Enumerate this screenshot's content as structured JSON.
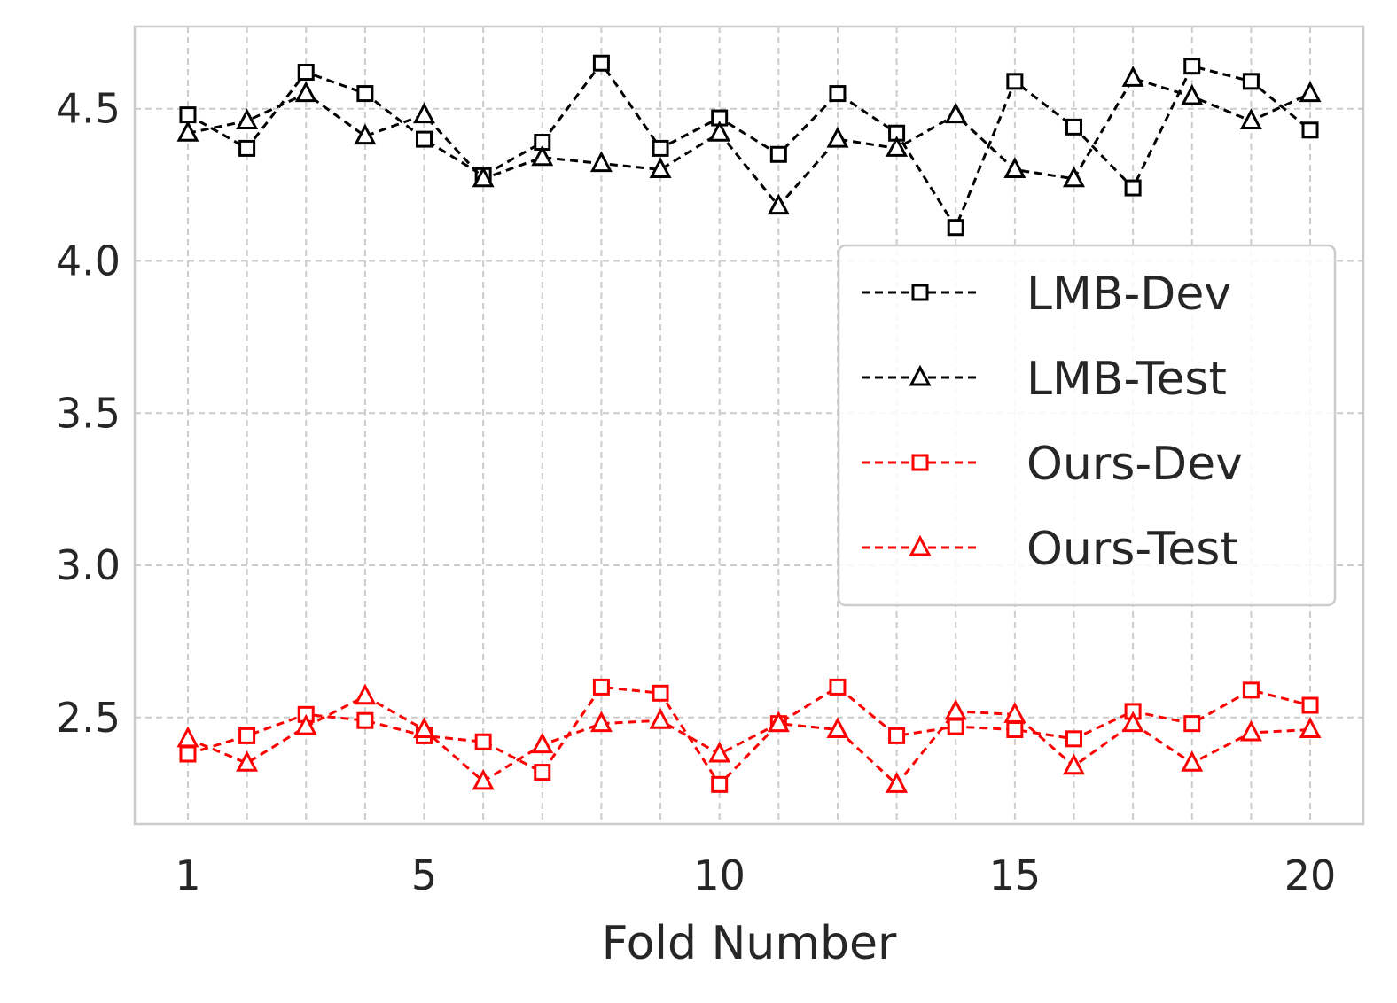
{
  "chart_data": {
    "type": "line",
    "xlabel": "Fold Number",
    "ylabel": "",
    "xlim": [
      0.1,
      20.9
    ],
    "ylim": [
      2.15,
      4.77
    ],
    "xticks": [
      "1",
      "5",
      "10",
      "15",
      "20"
    ],
    "yticks": [
      "2.5",
      "3.0",
      "3.5",
      "4.0",
      "4.5"
    ],
    "grid": true,
    "legend_position": "right",
    "x": [
      1,
      2,
      3,
      4,
      5,
      6,
      7,
      8,
      9,
      10,
      11,
      12,
      13,
      14,
      15,
      16,
      17,
      18,
      19,
      20
    ],
    "series": [
      {
        "name": "LMB-Dev",
        "color": "#000000",
        "marker": "square",
        "values": [
          4.48,
          4.37,
          4.62,
          4.55,
          4.4,
          4.28,
          4.39,
          4.65,
          4.37,
          4.47,
          4.35,
          4.55,
          4.42,
          4.11,
          4.59,
          4.44,
          4.24,
          4.64,
          4.59,
          4.43
        ]
      },
      {
        "name": "LMB-Test",
        "color": "#000000",
        "marker": "triangle",
        "values": [
          4.42,
          4.46,
          4.55,
          4.41,
          4.48,
          4.27,
          4.34,
          4.32,
          4.3,
          4.42,
          4.18,
          4.4,
          4.37,
          4.48,
          4.3,
          4.27,
          4.6,
          4.54,
          4.46,
          4.55
        ]
      },
      {
        "name": "Ours-Dev",
        "color": "#ff0000",
        "marker": "square",
        "values": [
          2.38,
          2.44,
          2.51,
          2.49,
          2.44,
          2.42,
          2.32,
          2.6,
          2.58,
          2.28,
          2.48,
          2.6,
          2.44,
          2.47,
          2.46,
          2.43,
          2.52,
          2.48,
          2.59,
          2.54
        ]
      },
      {
        "name": "Ours-Test",
        "color": "#ff0000",
        "marker": "triangle",
        "values": [
          2.43,
          2.35,
          2.47,
          2.57,
          2.46,
          2.29,
          2.41,
          2.48,
          2.49,
          2.38,
          2.48,
          2.46,
          2.28,
          2.52,
          2.51,
          2.34,
          2.48,
          2.35,
          2.45,
          2.46
        ]
      }
    ]
  }
}
